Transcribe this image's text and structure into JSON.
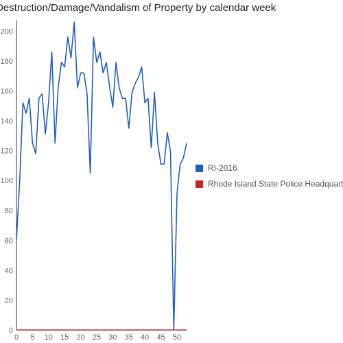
{
  "chart_data": {
    "type": "line",
    "title": "Destruction/Damage/Vandalism of Property by calendar week",
    "xlabel": "",
    "ylabel": "",
    "xlim": [
      0,
      53
    ],
    "ylim": [
      0,
      207
    ],
    "x_ticks": [
      0,
      5,
      10,
      15,
      20,
      25,
      30,
      35,
      40,
      45,
      50
    ],
    "y_ticks": [
      0,
      20,
      40,
      60,
      80,
      100,
      120,
      140,
      160,
      180,
      200
    ],
    "grid": false,
    "legend_position": "right",
    "x": [
      0,
      1,
      2,
      3,
      4,
      5,
      6,
      7,
      8,
      9,
      10,
      11,
      12,
      13,
      14,
      15,
      16,
      17,
      18,
      19,
      20,
      21,
      22,
      23,
      24,
      25,
      26,
      27,
      28,
      29,
      30,
      31,
      32,
      33,
      34,
      35,
      36,
      37,
      38,
      39,
      40,
      41,
      42,
      43,
      44,
      45,
      46,
      47,
      48,
      49,
      50,
      51,
      52,
      53
    ],
    "series": [
      {
        "name": "RI-2016",
        "color": "#1f5fc0",
        "values": [
          60,
          100,
          152,
          145,
          155,
          125,
          118,
          155,
          158,
          131,
          152,
          186,
          125,
          162,
          179,
          176,
          196,
          182,
          206,
          162,
          172,
          172,
          158,
          105,
          196,
          179,
          186,
          172,
          179,
          163,
          149,
          179,
          162,
          155,
          155,
          135,
          159,
          165,
          169,
          176,
          152,
          155,
          122,
          159,
          125,
          111,
          111,
          132,
          119,
          0,
          91,
          111,
          115,
          125
        ]
      },
      {
        "name": "Rhode Island State Police Headquarters",
        "color": "#c62828",
        "values": [
          0,
          0,
          0,
          0,
          0,
          0,
          0,
          0,
          0,
          0,
          0,
          0,
          0,
          0,
          0,
          0,
          0,
          0,
          0,
          0,
          0,
          0,
          0,
          0,
          0,
          0,
          0,
          0,
          0,
          0,
          0,
          0,
          0,
          0,
          0,
          0,
          0,
          0,
          0,
          0,
          0,
          0,
          0,
          0,
          0,
          0,
          0,
          0,
          0,
          0,
          0,
          0,
          0,
          0
        ]
      }
    ]
  }
}
